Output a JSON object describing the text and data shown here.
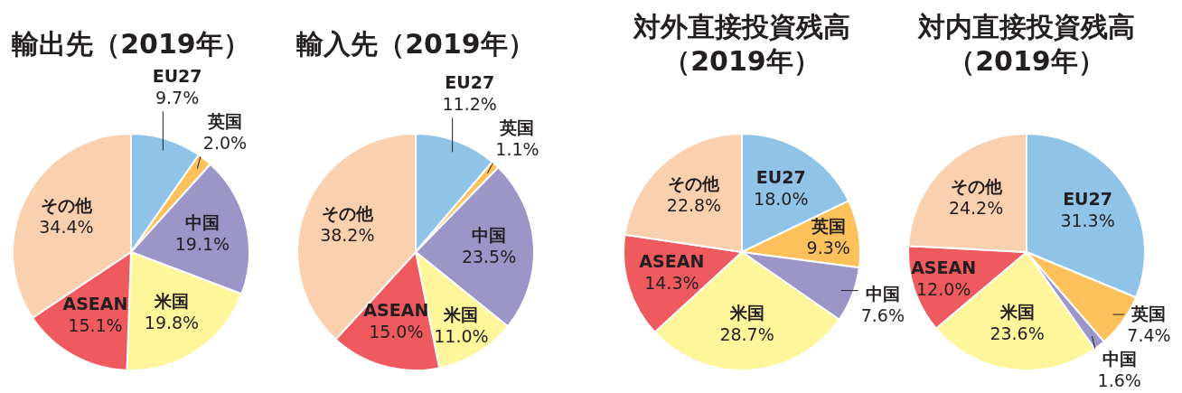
{
  "chart_data": [
    {
      "type": "pie",
      "title": "輸出先（2019年）",
      "categories": [
        "EU27",
        "英国",
        "中国",
        "米国",
        "ASEAN",
        "その他"
      ],
      "values": [
        9.7,
        2.0,
        19.1,
        19.8,
        15.1,
        34.4
      ],
      "value_labels": [
        "9.7%",
        "2.0%",
        "19.1%",
        "19.8%",
        "15.1%",
        "34.4%"
      ],
      "colors": [
        "#8fc3e8",
        "#fcc15a",
        "#9b95c8",
        "#fff59a",
        "#ee5a5e",
        "#fad0af"
      ]
    },
    {
      "type": "pie",
      "title": "輸入先（2019年）",
      "categories": [
        "EU27",
        "英国",
        "中国",
        "米国",
        "ASEAN",
        "その他"
      ],
      "values": [
        11.2,
        1.1,
        23.5,
        11.0,
        15.0,
        38.2
      ],
      "value_labels": [
        "11.2%",
        "1.1%",
        "23.5%",
        "11.0%",
        "15.0%",
        "38.2%"
      ],
      "colors": [
        "#8fc3e8",
        "#fcc15a",
        "#9b95c8",
        "#fff59a",
        "#ee5a5e",
        "#fad0af"
      ]
    },
    {
      "type": "pie",
      "title": "対外直接投資残高（2019年）",
      "categories": [
        "EU27",
        "英国",
        "中国",
        "米国",
        "ASEAN",
        "その他"
      ],
      "values": [
        18.0,
        9.3,
        7.6,
        28.7,
        14.3,
        22.8
      ],
      "value_labels": [
        "18.0%",
        "9.3%",
        "7.6%",
        "28.7%",
        "14.3%",
        "22.8%"
      ],
      "colors": [
        "#8fc3e8",
        "#fcc15a",
        "#9b95c8",
        "#fff59a",
        "#ee5a5e",
        "#fad0af"
      ]
    },
    {
      "type": "pie",
      "title": "対内直接投資残高（2019年）",
      "categories": [
        "EU27",
        "英国",
        "中国",
        "米国",
        "ASEAN",
        "その他"
      ],
      "values": [
        31.3,
        7.4,
        1.6,
        23.6,
        12.0,
        24.2
      ],
      "value_labels": [
        "31.3%",
        "7.4%",
        "1.6%",
        "23.6%",
        "12.0%",
        "24.2%"
      ],
      "colors": [
        "#8fc3e8",
        "#fcc15a",
        "#9b95c8",
        "#fff59a",
        "#ee5a5e",
        "#fad0af"
      ]
    }
  ]
}
